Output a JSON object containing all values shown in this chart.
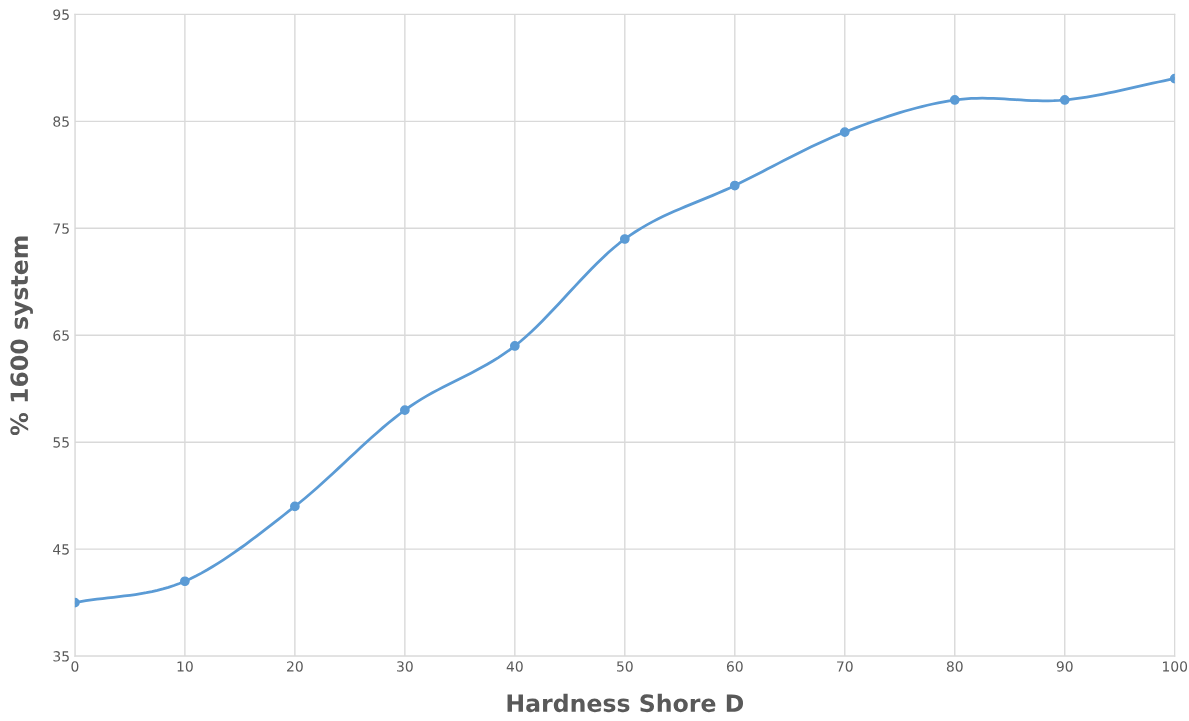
{
  "chart_data": {
    "type": "line",
    "xlabel": "Hardness Shore D",
    "ylabel": "% 1600 system",
    "x": [
      0,
      10,
      20,
      30,
      40,
      50,
      60,
      70,
      80,
      90,
      100
    ],
    "series": [
      {
        "color": "#5b9bd5",
        "values": [
          40,
          42,
          49,
          58,
          64,
          74,
          79,
          84,
          87,
          87,
          89
        ]
      }
    ],
    "xlim": [
      0,
      100
    ],
    "xticks": [
      0,
      10,
      20,
      30,
      40,
      50,
      60,
      70,
      80,
      90,
      100
    ],
    "ylim": [
      35,
      95
    ],
    "yticks": [
      35,
      45,
      55,
      65,
      75,
      85,
      95
    ],
    "grid": true,
    "marker": "circle",
    "line_style": "solid",
    "legend": false
  }
}
